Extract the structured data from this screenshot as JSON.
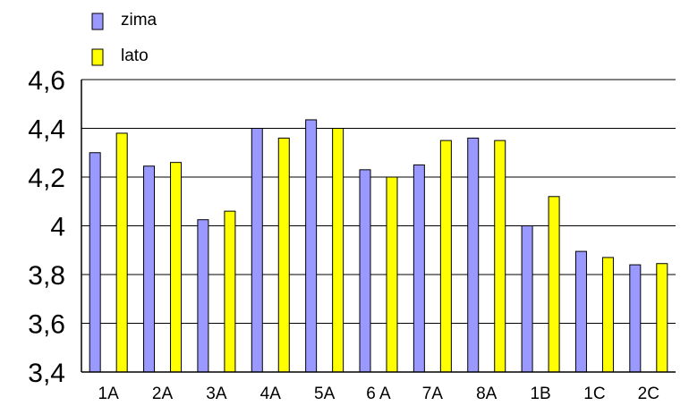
{
  "chart_data": {
    "type": "bar",
    "categories": [
      "1A",
      "2A",
      "3A",
      "4A",
      "5A",
      "6 A",
      "7A",
      "8A",
      "1B",
      "1C",
      "2C"
    ],
    "series": [
      {
        "name": "zima",
        "color": "#9999ff",
        "values": [
          4.3,
          4.245,
          4.025,
          4.4,
          4.435,
          4.23,
          4.25,
          4.36,
          4.0,
          3.895,
          3.84
        ]
      },
      {
        "name": "lato",
        "color": "#ffff00",
        "values": [
          4.38,
          4.26,
          4.06,
          4.36,
          4.4,
          4.2,
          4.35,
          4.35,
          4.12,
          3.87,
          3.845
        ]
      }
    ],
    "yticks": [
      "3,4",
      "3,6",
      "3,8",
      "4",
      "4,2",
      "4,4",
      "4,6"
    ],
    "ylim": [
      3.4,
      4.6
    ],
    "grid": true,
    "legend_position": "top-left"
  }
}
